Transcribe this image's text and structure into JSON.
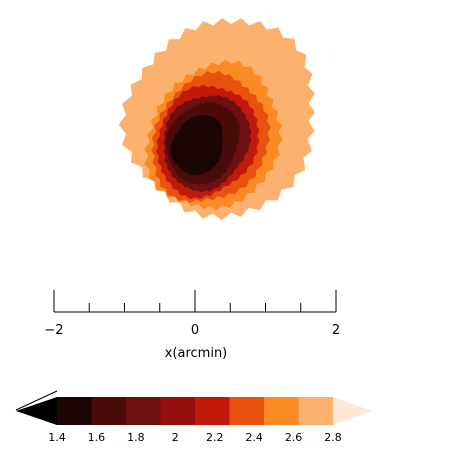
{
  "chart_data": {
    "type": "heatmap",
    "title": "",
    "subtitle": "",
    "xlabel": "x(arcmin)",
    "ylabel": "",
    "xlim": [
      -2,
      2
    ],
    "x_ticks": [
      {
        "value": -2,
        "label": "−2"
      },
      {
        "value": 0,
        "label": "0"
      },
      {
        "value": 2,
        "label": "2"
      }
    ],
    "x_minor_step": 0.5,
    "grid": false,
    "legend": "none",
    "colorbar": {
      "orientation": "horizontal",
      "placement": "bottom",
      "extend": "both",
      "levels": [
        1.4,
        1.6,
        1.8,
        2,
        2.2,
        2.4,
        2.6,
        2.8
      ],
      "labels": [
        "1.4",
        "1.6",
        "1.8",
        "2",
        "2.2",
        "2.4",
        "2.6",
        "2.8"
      ],
      "under_color": "#000000",
      "over_color": "#fde8d6",
      "colors": [
        "#1c0505",
        "#4a0b0b",
        "#6e1010",
        "#960f0f",
        "#c11a0c",
        "#e8520e",
        "#fb8a24",
        "#fcb26e"
      ]
    },
    "contours": [
      {
        "level": 2.6,
        "color": "#fcb26e"
      },
      {
        "level": 2.4,
        "color": "#fb8a24"
      },
      {
        "level": 2.2,
        "color": "#e8520e"
      },
      {
        "level": 2.0,
        "color": "#c11a0c"
      },
      {
        "level": 1.8,
        "color": "#6e1010"
      },
      {
        "level": 1.6,
        "color": "#4a0b0b"
      },
      {
        "level": 1.4,
        "color": "#1c0505"
      }
    ]
  }
}
